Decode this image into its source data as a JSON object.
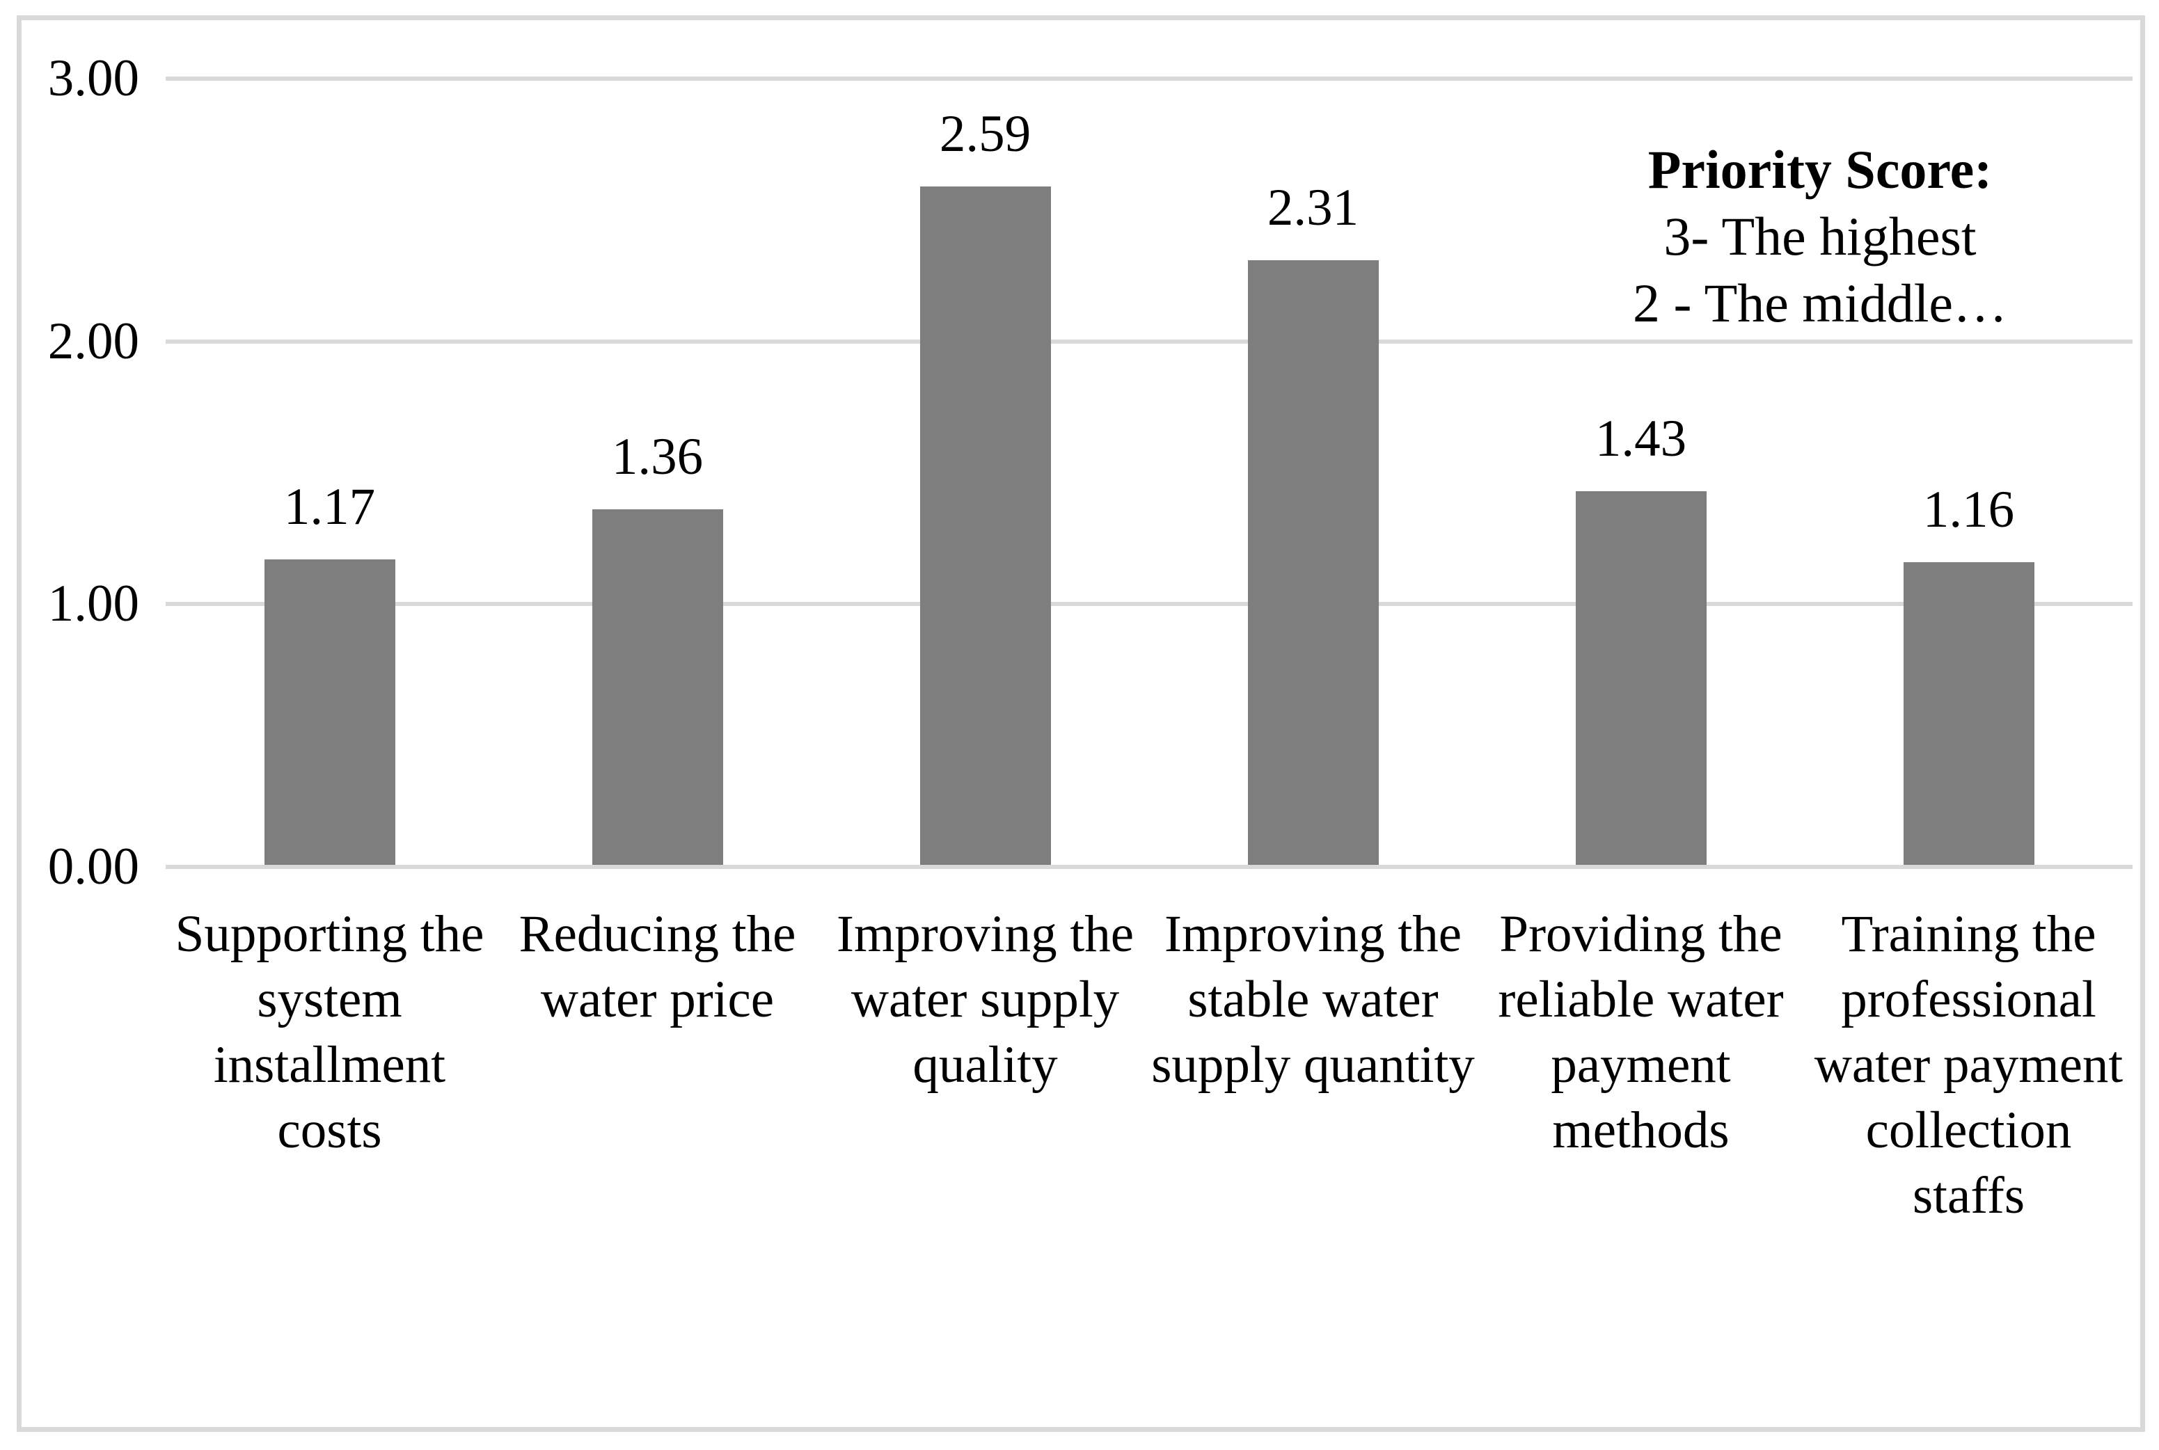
{
  "chart_data": {
    "type": "bar",
    "title": "",
    "xlabel": "",
    "ylabel": "",
    "categories": [
      "Supporting the system installment costs",
      "Reducing the water price",
      "Improving the water supply quality",
      "Improving the stable water supply quantity",
      "Providing the reliable water payment methods",
      "Training the professional water payment collection staffs"
    ],
    "values": [
      1.17,
      1.36,
      2.59,
      2.31,
      1.43,
      1.16
    ],
    "value_labels": [
      "1.17",
      "1.36",
      "2.59",
      "2.31",
      "1.43",
      "1.16"
    ],
    "ylim": [
      0,
      3
    ],
    "y_ticks": [
      {
        "value": 3,
        "label": "3.00"
      },
      {
        "value": 2,
        "label": "2.00"
      },
      {
        "value": 1,
        "label": "1.00"
      },
      {
        "value": 0,
        "label": "0.00"
      }
    ],
    "grid": "horizontal-gridlines-on",
    "legend_position": "none",
    "bar_color": "#7E7E7E",
    "gridline_color": "#D9D9D9",
    "border_color": "#D9D9D9",
    "annotation": {
      "title": "Priority Score:",
      "lines": [
        "3- The highest",
        "2 - The middle…"
      ]
    }
  },
  "display": {
    "wrapped_categories": [
      "Supporting the\nsystem\ninstallment\ncosts",
      "Reducing the\nwater price",
      "Improving the\nwater supply\nquality",
      "Improving the\nstable water\nsupply quantity",
      "Providing the\nreliable water\npayment\nmethods",
      "Training the\nprofessional\nwater payment\ncollection\nstaffs"
    ]
  }
}
